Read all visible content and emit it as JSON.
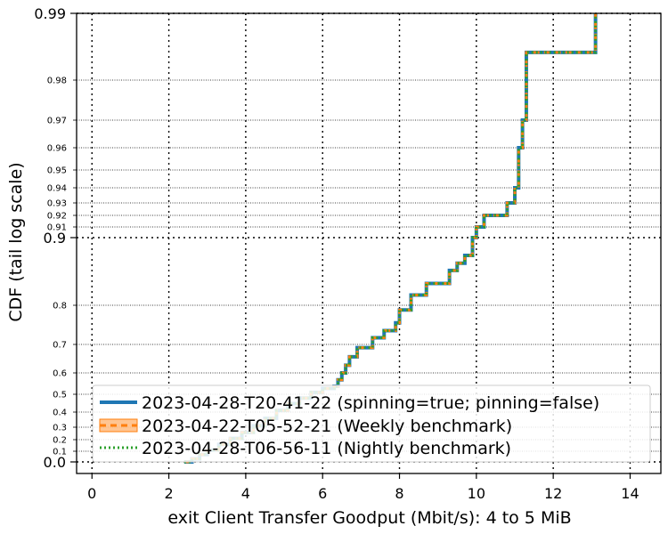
{
  "chart_data": {
    "type": "line",
    "xlabel": "exit Client Transfer Goodput (Mbit/s): 4 to 5 MiB",
    "ylabel": "CDF (tail log scale)",
    "xlim": [
      -0.4,
      14.8
    ],
    "x_ticks": [
      0,
      2,
      4,
      6,
      8,
      10,
      12,
      14
    ],
    "x_tick_labels": [
      "0",
      "2",
      "4",
      "6",
      "8",
      "10",
      "12",
      "14"
    ],
    "y_scale": "tail log",
    "y_major_ticks": [
      0.0,
      0.9,
      0.99
    ],
    "y_major_tick_labels": [
      "0.0",
      "0.9",
      "0.99"
    ],
    "y_minor_ticks": [
      0.1,
      0.2,
      0.3,
      0.4,
      0.5,
      0.6,
      0.7,
      0.8,
      0.91,
      0.92,
      0.93,
      0.94,
      0.95,
      0.96,
      0.97,
      0.98
    ],
    "y_minor_tick_labels": [
      "0.1",
      "0.2",
      "0.3",
      "0.4",
      "0.5",
      "0.6",
      "0.7",
      "0.8",
      "0.91",
      "0.92",
      "0.93",
      "0.94",
      "0.95",
      "0.96",
      "0.97",
      "0.98"
    ],
    "grid": "major dotted, minor dotted",
    "legend_position": "bottom-right",
    "series": [
      {
        "name": "2023-04-28-T20-41-22 (spinning=true; pinning=false)",
        "color": "#1f77b4",
        "style": "solid",
        "x": [
          2.4,
          2.6,
          2.8,
          3.0,
          3.3,
          3.6,
          3.9,
          4.2,
          4.5,
          4.8,
          5.1,
          5.4,
          5.7,
          6.0,
          6.3,
          6.4,
          6.5,
          6.6,
          6.7,
          6.9,
          7.3,
          7.6,
          7.9,
          8.0,
          8.3,
          8.7,
          9.3,
          9.5,
          9.7,
          9.9,
          10.0,
          10.2,
          10.8,
          11.0,
          11.1,
          11.2,
          11.3,
          13.1
        ],
        "y": [
          0.0,
          0.03,
          0.07,
          0.11,
          0.16,
          0.21,
          0.26,
          0.31,
          0.36,
          0.41,
          0.45,
          0.48,
          0.51,
          0.53,
          0.54,
          0.57,
          0.6,
          0.63,
          0.66,
          0.69,
          0.72,
          0.74,
          0.76,
          0.79,
          0.82,
          0.84,
          0.86,
          0.87,
          0.88,
          0.9,
          0.91,
          0.92,
          0.93,
          0.94,
          0.96,
          0.97,
          0.985,
          0.99
        ]
      },
      {
        "name": "2023-04-22-T05-52-21 (Weekly benchmark)",
        "color": "#ff7f0e",
        "style": "dashed",
        "x": [
          2.4,
          2.6,
          2.8,
          3.0,
          3.3,
          3.6,
          3.9,
          4.2,
          4.5,
          4.8,
          5.1,
          5.4,
          5.7,
          6.0,
          6.3,
          6.4,
          6.5,
          6.6,
          6.7,
          6.9,
          7.3,
          7.6,
          7.9,
          8.0,
          8.3,
          8.7,
          9.3,
          9.5,
          9.7,
          9.9,
          10.0,
          10.2,
          10.8,
          11.0,
          11.1,
          11.2,
          11.3,
          13.1
        ],
        "y": [
          0.0,
          0.03,
          0.07,
          0.11,
          0.16,
          0.21,
          0.26,
          0.31,
          0.36,
          0.41,
          0.45,
          0.48,
          0.51,
          0.53,
          0.54,
          0.57,
          0.6,
          0.63,
          0.66,
          0.69,
          0.72,
          0.74,
          0.76,
          0.79,
          0.82,
          0.84,
          0.86,
          0.87,
          0.88,
          0.9,
          0.91,
          0.92,
          0.93,
          0.94,
          0.96,
          0.97,
          0.985,
          0.99
        ]
      },
      {
        "name": "2023-04-28-T06-56-11 (Nightly benchmark)",
        "color": "#2ca02c",
        "style": "dotted",
        "x": [
          2.4,
          2.6,
          2.8,
          3.0,
          3.3,
          3.6,
          3.9,
          4.2,
          4.5,
          4.8,
          5.1,
          5.4,
          5.7,
          6.0,
          6.3,
          6.4,
          6.5,
          6.6,
          6.7,
          6.9,
          7.3,
          7.6,
          7.9,
          8.0,
          8.3,
          8.7,
          9.3,
          9.5,
          9.7,
          9.9,
          10.0,
          10.2,
          10.8,
          11.0,
          11.1,
          11.2,
          11.3,
          13.1
        ],
        "y": [
          0.0,
          0.03,
          0.07,
          0.11,
          0.16,
          0.21,
          0.26,
          0.31,
          0.36,
          0.41,
          0.45,
          0.48,
          0.51,
          0.53,
          0.54,
          0.57,
          0.6,
          0.63,
          0.66,
          0.69,
          0.72,
          0.74,
          0.76,
          0.79,
          0.82,
          0.84,
          0.86,
          0.87,
          0.88,
          0.9,
          0.91,
          0.92,
          0.93,
          0.94,
          0.96,
          0.97,
          0.985,
          0.99
        ]
      }
    ]
  }
}
